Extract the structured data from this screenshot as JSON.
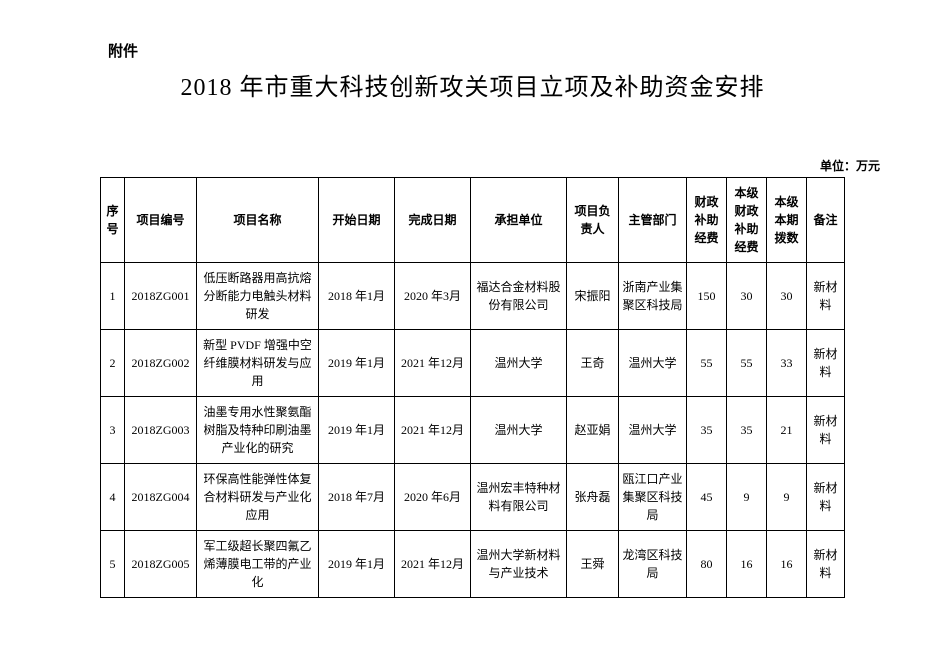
{
  "attachment_label": "附件",
  "page_title": "2018 年市重大科技创新攻关项目立项及补助资金安排",
  "unit_label": "单位：万元",
  "columns": {
    "seq": "序号",
    "code": "项目编号",
    "name": "项目名称",
    "start": "开始日期",
    "end": "完成日期",
    "unit": "承担单位",
    "lead": "项目负责人",
    "dept": "主管部门",
    "f1": "财政补助经费",
    "f2": "本级财政补助经费",
    "f3": "本级本期拨数",
    "note": "备注"
  },
  "rows": [
    {
      "seq": "1",
      "code": "2018ZG001",
      "name": "低压断路器用高抗熔分断能力电触头材料研发",
      "start": "2018 年1月",
      "end": "2020 年3月",
      "unit": "福达合金材料股份有限公司",
      "lead": "宋振阳",
      "dept": "浙南产业集聚区科技局",
      "f1": "150",
      "f2": "30",
      "f3": "30",
      "note": "新材料"
    },
    {
      "seq": "2",
      "code": "2018ZG002",
      "name": "新型 PVDF 增强中空纤维膜材料研发与应用",
      "start": "2019 年1月",
      "end": "2021 年12月",
      "unit": "温州大学",
      "lead": "王奇",
      "dept": "温州大学",
      "f1": "55",
      "f2": "55",
      "f3": "33",
      "note": "新材料"
    },
    {
      "seq": "3",
      "code": "2018ZG003",
      "name": "油墨专用水性聚氨酯树脂及特种印刷油墨产业化的研究",
      "start": "2019 年1月",
      "end": "2021 年12月",
      "unit": "温州大学",
      "lead": "赵亚娟",
      "dept": "温州大学",
      "f1": "35",
      "f2": "35",
      "f3": "21",
      "note": "新材料"
    },
    {
      "seq": "4",
      "code": "2018ZG004",
      "name": "环保高性能弹性体复合材料研发与产业化应用",
      "start": "2018 年7月",
      "end": "2020 年6月",
      "unit": "温州宏丰特种材料有限公司",
      "lead": "张舟磊",
      "dept": "瓯江口产业集聚区科技局",
      "f1": "45",
      "f2": "9",
      "f3": "9",
      "note": "新材料"
    },
    {
      "seq": "5",
      "code": "2018ZG005",
      "name": "军工级超长聚四氟乙烯薄膜电工带的产业化",
      "start": "2019 年1月",
      "end": "2021 年12月",
      "unit": "温州大学新材料与产业技术",
      "lead": "王舜",
      "dept": "龙湾区科技局",
      "f1": "80",
      "f2": "16",
      "f3": "16",
      "note": "新材料"
    }
  ]
}
